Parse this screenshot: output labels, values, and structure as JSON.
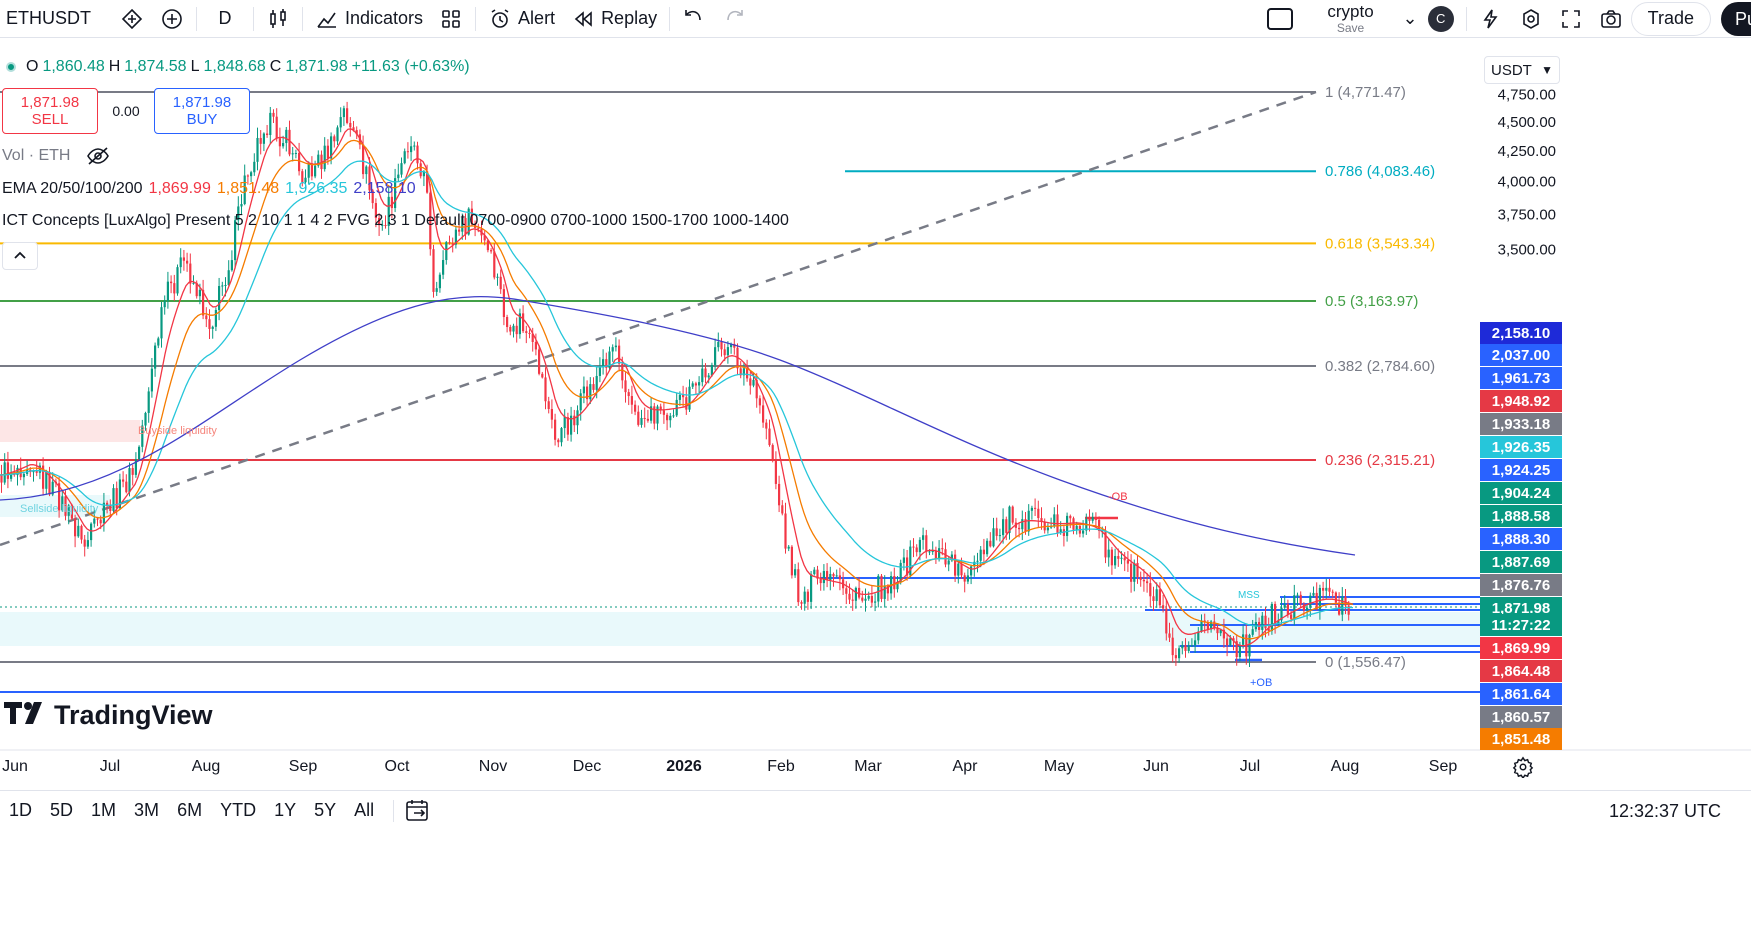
{
  "toolbar": {
    "symbol": "ETHUSDT",
    "interval": "D",
    "indicators_label": "Indicators",
    "alert_label": "Alert",
    "replay_label": "Replay",
    "layout_name": "crypto",
    "layout_save": "Save",
    "avatar_letter": "C",
    "trade_label": "Trade",
    "publish_label": "Pu"
  },
  "legend": {
    "o_key": "O",
    "o_val": "1,860.48",
    "h_key": "H",
    "h_val": "1,874.58",
    "l_key": "L",
    "l_val": "1,848.68",
    "c_key": "C",
    "c_val": "1,871.98",
    "change": "+11.63 (+0.63%)",
    "sell_price": "1,871.98",
    "sell_label": "SELL",
    "spread": "0.00",
    "buy_price": "1,871.98",
    "buy_label": "BUY",
    "vol_label": "Vol · ETH",
    "ema_label": "EMA 20/50/100/200",
    "ema20": "1,869.99",
    "ema50": "1,851.48",
    "ema100": "1,926.35",
    "ema200": "2,158.10",
    "ict_label": "ICT Concepts [LuxAlgo] Present 5 2 10 1 1 4 2 FVG 2 3 1 Default 0700-0900 0700-1000 1500-1700 1000-1400"
  },
  "currency": "USDT",
  "y_axis_ticks": [
    "4,750.00",
    "4,500.00",
    "4,250.00",
    "4,000.00",
    "3,750.00",
    "3,500.00"
  ],
  "price_tags": [
    {
      "text": "2,158.10",
      "color": "#1e2ad8"
    },
    {
      "text": "2,037.00",
      "color": "#2962ff"
    },
    {
      "text": "1,961.73",
      "color": "#2962ff"
    },
    {
      "text": "1,948.92",
      "color": "#e53945"
    },
    {
      "text": "1,933.18",
      "color": "#787b86"
    },
    {
      "text": "1,926.35",
      "color": "#26c6da"
    },
    {
      "text": "1,924.25",
      "color": "#2962ff"
    },
    {
      "text": "1,904.24",
      "color": "#089981"
    },
    {
      "text": "1,888.58",
      "color": "#089981"
    },
    {
      "text": "1,888.30",
      "color": "#2962ff"
    },
    {
      "text": "1,887.69",
      "color": "#089981"
    },
    {
      "text": "1,876.76",
      "color": "#787b86"
    },
    {
      "text": "1,871.98",
      "color": "#089981"
    },
    {
      "text": "11:27:22",
      "color": "#089981"
    },
    {
      "text": "1,869.99",
      "color": "#f23645"
    },
    {
      "text": "1,864.48",
      "color": "#e53945"
    },
    {
      "text": "1,861.64",
      "color": "#2962ff"
    },
    {
      "text": "1,860.57",
      "color": "#787b86"
    },
    {
      "text": "1,851.48",
      "color": "#f57c00"
    }
  ],
  "fib_levels": [
    {
      "label": "1 (4,771.47)",
      "color": "#787b86"
    },
    {
      "label": "0.786 (4,083.46)",
      "color": "#00acc1"
    },
    {
      "label": "0.618 (3,543.34)",
      "color": "#f9b900"
    },
    {
      "label": "0.5 (3,163.97)",
      "color": "#43a047"
    },
    {
      "label": "0.382 (2,784.60)",
      "color": "#787b86"
    },
    {
      "label": "0.236 (2,315.21)",
      "color": "#e53945"
    },
    {
      "label": "0 (1,556.47)",
      "color": "#787b86"
    }
  ],
  "annotations": {
    "buyside": "Buyside liquidity",
    "sellside": "Sellside liquidity",
    "minus_ob": "-OB",
    "plus_ob": "+OB",
    "mss": "MSS"
  },
  "time_axis": [
    "Jun",
    "Jul",
    "Aug",
    "Sep",
    "Oct",
    "Nov",
    "Dec",
    "2026",
    "Feb",
    "Mar",
    "Apr",
    "May",
    "Jun",
    "Jul",
    "Aug",
    "Sep"
  ],
  "watermark": "TradingView",
  "bottom": {
    "ranges": [
      "1D",
      "5D",
      "1M",
      "3M",
      "6M",
      "YTD",
      "1Y",
      "5Y",
      "All"
    ],
    "clock": "12:32:37 UTC"
  },
  "colors": {
    "up": "#089981",
    "down": "#f23645",
    "ema20": "#f23645",
    "ema50": "#f57c00",
    "ema100": "#26c6da",
    "ema200": "#3f3fc8"
  },
  "chart_data": {
    "type": "candlestick",
    "symbol": "ETHUSDT",
    "interval": "1D",
    "x": [
      "2025-06",
      "2025-07",
      "2025-08",
      "2025-09",
      "2025-10",
      "2025-11",
      "2025-12",
      "2026-01",
      "2026-02",
      "2026-03",
      "2026-04",
      "2026-05",
      "2026-06",
      "2026-07",
      "2026-08"
    ],
    "approx_monthly_close": [
      2450,
      3700,
      4450,
      4150,
      3850,
      3000,
      2950,
      2700,
      1950,
      2050,
      2300,
      2250,
      1700,
      1920,
      1872
    ],
    "last": {
      "open": 1860.48,
      "high": 1874.58,
      "low": 1848.68,
      "close": 1871.98,
      "change": 11.63,
      "change_pct": 0.63
    },
    "ema": {
      "ema20": 1869.99,
      "ema50": 1851.48,
      "ema100": 1926.35,
      "ema200": 2158.1
    },
    "fibonacci": {
      "1": 4771.47,
      "0.786": 4083.46,
      "0.618": 3543.34,
      "0.5": 3163.97,
      "0.382": 2784.6,
      "0.236": 2315.21,
      "0": 1556.47
    },
    "y_axis": {
      "visible_ticks": [
        4750,
        4500,
        4250,
        4000,
        3750,
        3500
      ]
    }
  }
}
